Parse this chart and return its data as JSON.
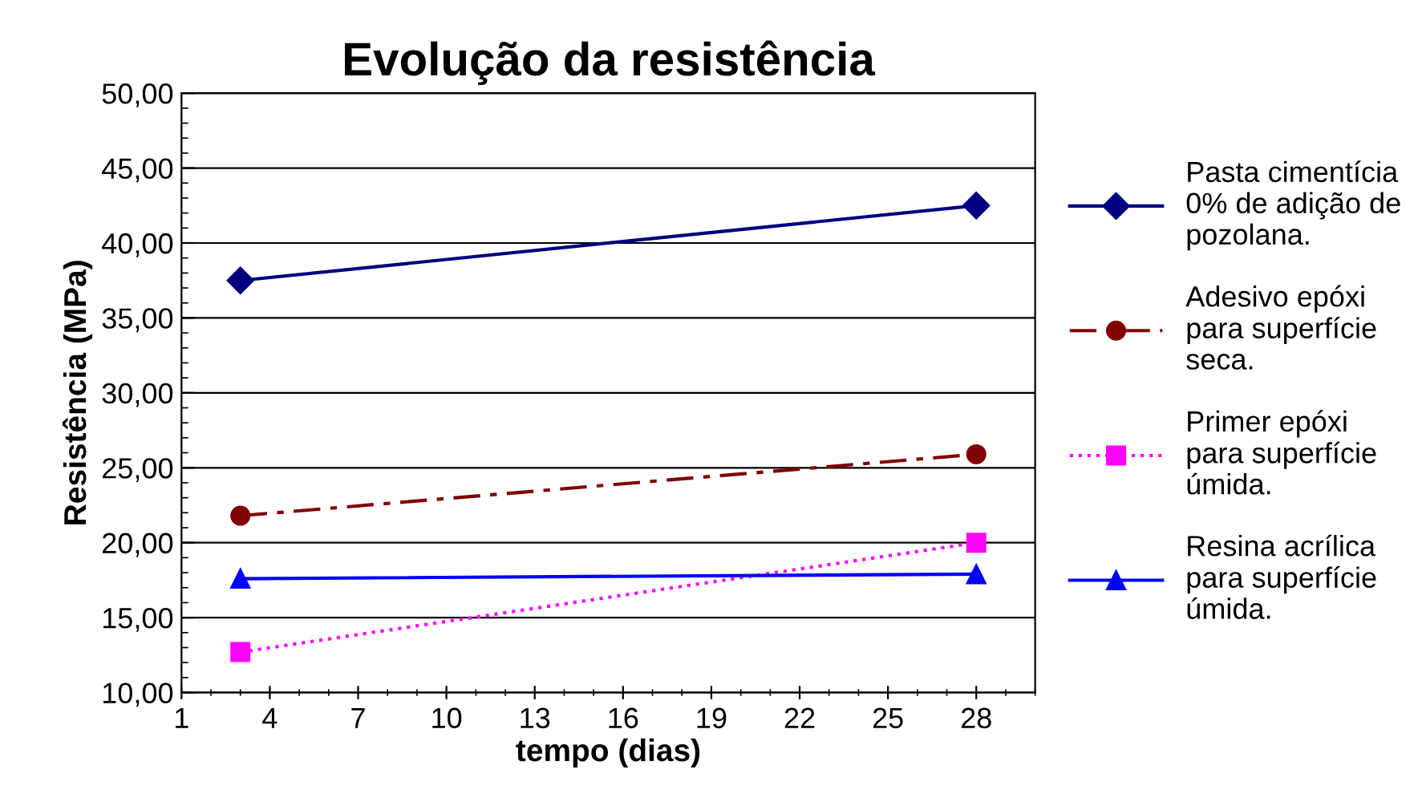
{
  "chart_data": {
    "type": "line",
    "title": "Evolução da resistência",
    "xlabel": "tempo (dias)",
    "ylabel": "Resistência (MPa)",
    "x": [
      3,
      28
    ],
    "series": [
      {
        "name": "Pasta cimentícia\n0% de adição de\npozolana.",
        "color": "#000080",
        "values": [
          37.5,
          42.5
        ],
        "marker": "diamond",
        "line_style": "solid"
      },
      {
        "name": "Adesivo epóxi\npara superfície\nseca.",
        "color": "#800000",
        "values": [
          21.8,
          25.9
        ],
        "marker": "circle",
        "line_style": "dashdot"
      },
      {
        "name": "Primer epóxi\npara superfície\númida.",
        "color": "#ff00ff",
        "values": [
          12.7,
          20.0
        ],
        "marker": "square",
        "line_style": "dotted"
      },
      {
        "name": "Resina acrílica\npara superfície\númida.",
        "color": "#0000ff",
        "values": [
          17.6,
          17.9
        ],
        "marker": "triangle",
        "line_style": "solid"
      }
    ],
    "xlim": [
      1,
      30
    ],
    "xticks": [
      1,
      4,
      7,
      10,
      13,
      16,
      19,
      22,
      25,
      28
    ],
    "ylim": [
      10,
      50
    ],
    "yticks": [
      {
        "value": 10,
        "label": "10,00"
      },
      {
        "value": 15,
        "label": "15,00"
      },
      {
        "value": 20,
        "label": "20,00"
      },
      {
        "value": 25,
        "label": "25,00"
      },
      {
        "value": 30,
        "label": "30,00"
      },
      {
        "value": 35,
        "label": "35,00"
      },
      {
        "value": 40,
        "label": "40,00"
      },
      {
        "value": 45,
        "label": "45,00"
      },
      {
        "value": 50,
        "label": "50,00"
      }
    ],
    "grid": "y",
    "legend": "right"
  }
}
